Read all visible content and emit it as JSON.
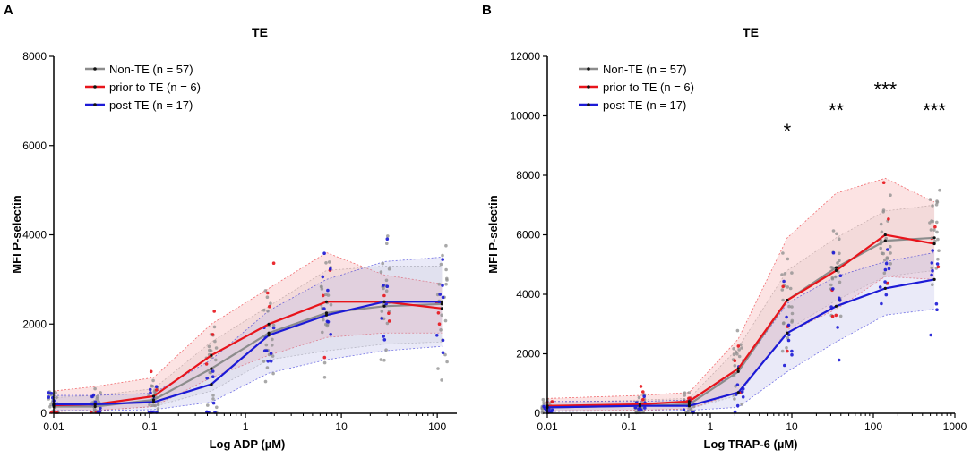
{
  "chart_data": [
    {
      "panel": "A",
      "type": "line",
      "title": "TE",
      "xlabel": "Log ADP (µM)",
      "ylabel": "MFI P-selectin",
      "xscale": "log",
      "xlim": [
        0.01,
        160
      ],
      "ylim": [
        0,
        8000
      ],
      "xticks": [
        0.01,
        0.1,
        1,
        10,
        100
      ],
      "xtick_labels": [
        "0.01",
        "0.1",
        "1",
        "10",
        "100"
      ],
      "yticks": [
        0,
        2000,
        4000,
        6000,
        8000
      ],
      "ytick_labels": [
        "0",
        "2000",
        "4000",
        "6000",
        "8000"
      ],
      "legend_position": "top-left",
      "x": [
        0.01,
        0.027,
        0.11,
        0.44,
        1.75,
        7,
        28,
        112
      ],
      "series": [
        {
          "name": "Non-TE (n = 57)",
          "color": "#8c8c8c",
          "values": [
            150,
            150,
            300,
            1000,
            1800,
            2250,
            2400,
            2450
          ],
          "lower": [
            60,
            60,
            150,
            500,
            1200,
            1400,
            1550,
            1600
          ],
          "upper": [
            350,
            400,
            550,
            1600,
            2400,
            3200,
            3300,
            3300
          ]
        },
        {
          "name": "prior to TE (n = 6)",
          "color": "#e8141b",
          "values": [
            180,
            200,
            380,
            1300,
            2000,
            2500,
            2500,
            2350
          ],
          "lower": [
            40,
            60,
            150,
            800,
            1300,
            1700,
            1800,
            1800
          ],
          "upper": [
            500,
            600,
            800,
            2000,
            2800,
            3600,
            3100,
            2900
          ]
        },
        {
          "name": "post TE (n = 17)",
          "color": "#1c1ad6",
          "values": [
            200,
            200,
            250,
            650,
            1750,
            2200,
            2500,
            2500
          ],
          "lower": [
            60,
            60,
            80,
            250,
            900,
            1200,
            1400,
            1500
          ],
          "upper": [
            400,
            400,
            450,
            1200,
            2300,
            3000,
            3400,
            3500
          ]
        }
      ],
      "significance": []
    },
    {
      "panel": "B",
      "type": "line",
      "title": "TE",
      "xlabel": "Log TRAP-6 (µM)",
      "ylabel": "MFI P-selectin",
      "xscale": "log",
      "xlim": [
        0.01,
        1000
      ],
      "ylim": [
        0,
        12000
      ],
      "xticks": [
        0.01,
        0.1,
        1,
        10,
        100,
        1000
      ],
      "xtick_labels": [
        "0.01",
        "0.1",
        "1",
        "10",
        "100",
        "1000"
      ],
      "yticks": [
        0,
        2000,
        4000,
        6000,
        8000,
        10000,
        12000
      ],
      "ytick_labels": [
        "0",
        "2000",
        "4000",
        "6000",
        "8000",
        "10000",
        "12000"
      ],
      "legend_position": "top-left",
      "x": [
        0.01,
        0.137,
        0.55,
        2.2,
        8.8,
        35,
        140,
        560
      ],
      "series": [
        {
          "name": "Non-TE (n = 57)",
          "color": "#8c8c8c",
          "values": [
            200,
            250,
            300,
            1400,
            3800,
            4900,
            5800,
            5900
          ],
          "lower": [
            80,
            100,
            150,
            600,
            2800,
            3800,
            4600,
            4800
          ],
          "upper": [
            350,
            450,
            500,
            2200,
            4800,
            5900,
            6800,
            7000
          ]
        },
        {
          "name": "prior to TE (n = 6)",
          "color": "#e8141b",
          "values": [
            250,
            300,
            400,
            1500,
            3800,
            4800,
            6000,
            5700
          ],
          "lower": [
            80,
            100,
            150,
            700,
            2700,
            3500,
            4600,
            4500
          ],
          "upper": [
            500,
            600,
            700,
            2500,
            5900,
            7400,
            7900,
            7100
          ]
        },
        {
          "name": "post TE (n = 17)",
          "color": "#1c1ad6",
          "values": [
            200,
            250,
            250,
            700,
            2700,
            3600,
            4200,
            4500
          ],
          "lower": [
            60,
            80,
            100,
            200,
            1400,
            2400,
            3300,
            3500
          ],
          "upper": [
            400,
            400,
            450,
            1400,
            3700,
            4600,
            5100,
            5400
          ]
        }
      ],
      "significance": [
        {
          "x": 8.8,
          "label": "*",
          "y": 9500
        },
        {
          "x": 35,
          "label": "**",
          "y": 10200
        },
        {
          "x": 140,
          "label": "***",
          "y": 10900
        },
        {
          "x": 560,
          "label": "***",
          "y": 10200
        }
      ]
    }
  ]
}
